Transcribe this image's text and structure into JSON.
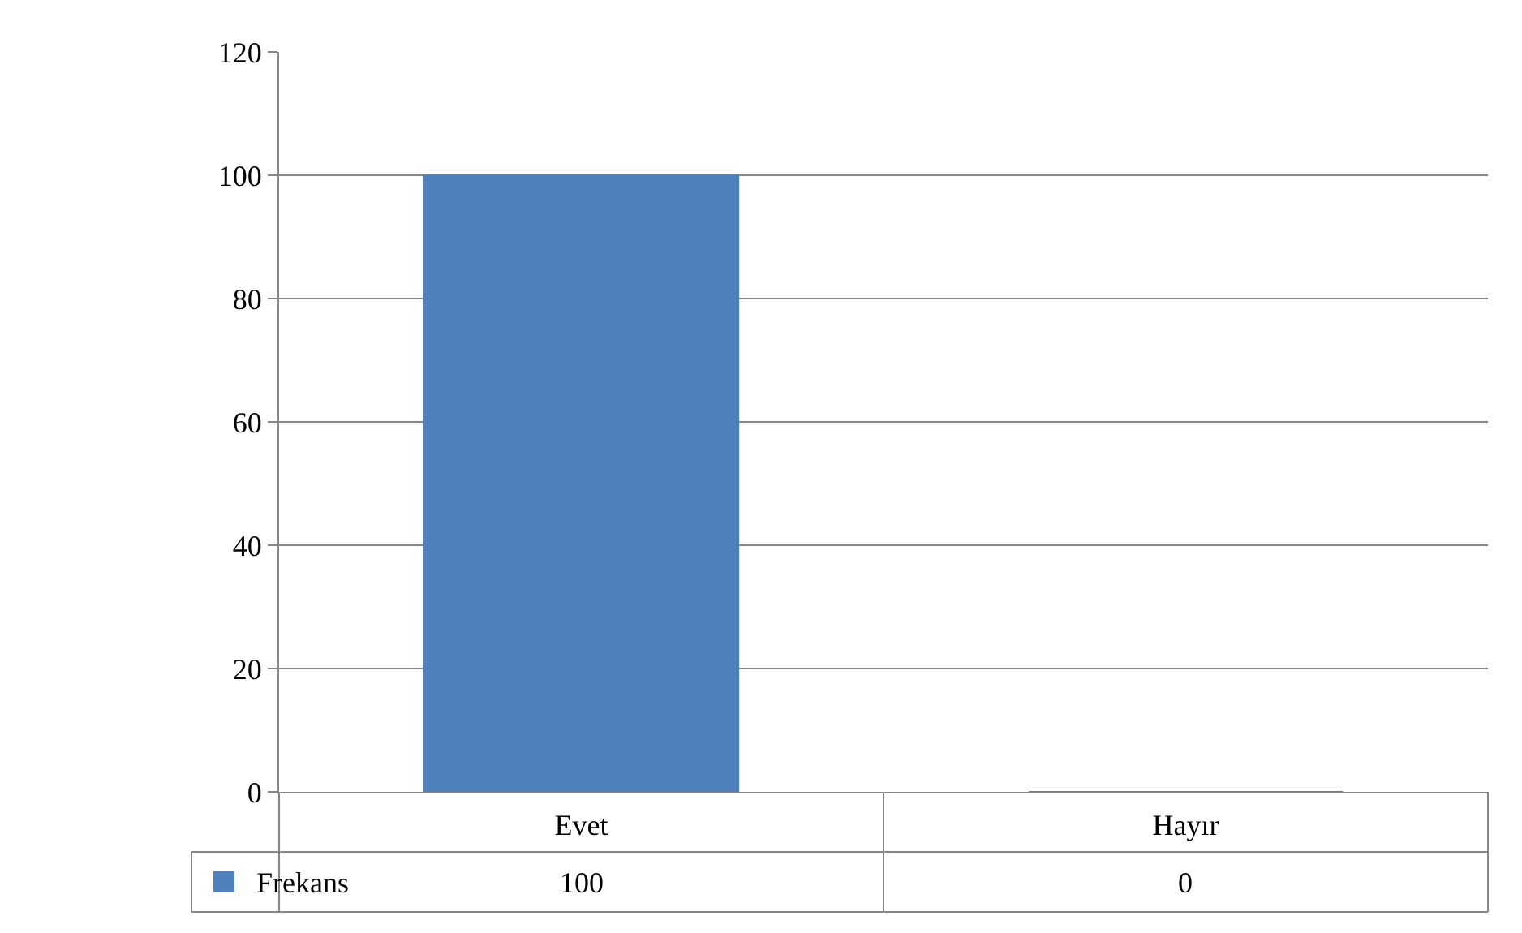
{
  "chart_data": {
    "type": "bar",
    "categories": [
      "Evet",
      "Hayır"
    ],
    "series": [
      {
        "name": "Frekans",
        "color": "#4f81bd",
        "values": [
          100,
          0
        ]
      }
    ],
    "ylim": [
      0,
      120
    ],
    "yticks": [
      0,
      20,
      40,
      60,
      80,
      100,
      120
    ],
    "grid": "y",
    "legend": "bottom left",
    "data_labels": true
  }
}
